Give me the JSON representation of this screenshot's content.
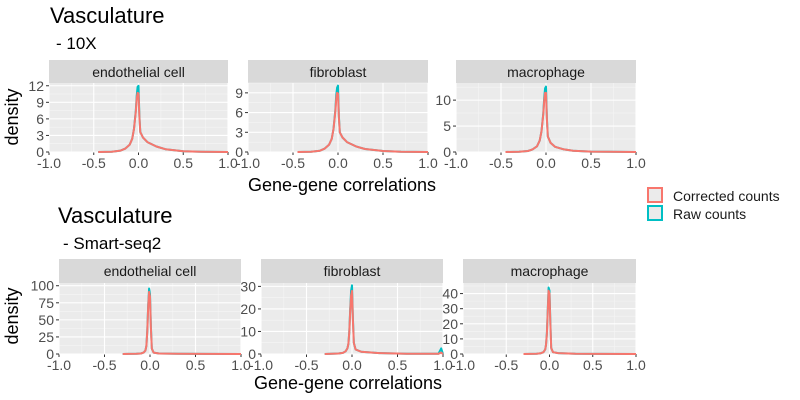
{
  "legend": {
    "items": [
      {
        "label": "Corrected counts",
        "color": "#F8766D"
      },
      {
        "label": "Raw counts",
        "color": "#00BFC4"
      }
    ],
    "placement": "right"
  },
  "chart_data": [
    {
      "type": "line",
      "title": "Vasculature",
      "subtitle": "- 10X",
      "xlabel": "Gene-gene correlations",
      "ylabel": "density",
      "xlim": [
        -1.0,
        1.0
      ],
      "xticks": [
        "-1.0",
        "-0.5",
        "0.0",
        "0.5",
        "1.0"
      ],
      "panels": [
        {
          "strip": "endothelial cell",
          "ylim": [
            0,
            12.5
          ],
          "yticks": [
            0,
            3,
            6,
            9,
            12
          ],
          "series": [
            {
              "name": "Raw counts",
              "x": [
                -0.45,
                -0.3,
                -0.2,
                -0.15,
                -0.1,
                -0.07,
                -0.05,
                -0.03,
                -0.02,
                -0.01,
                0.0,
                0.01,
                0.02,
                0.05,
                0.1,
                0.2,
                0.3,
                0.5,
                0.7,
                1.0
              ],
              "y": [
                0,
                0.05,
                0.25,
                0.6,
                1.3,
                2.4,
                4.2,
                7.5,
                10.2,
                11.8,
                12.0,
                6.5,
                3.6,
                2.6,
                1.8,
                1.0,
                0.5,
                0.15,
                0.05,
                0
              ]
            },
            {
              "name": "Corrected counts",
              "x": [
                -0.45,
                -0.3,
                -0.2,
                -0.15,
                -0.1,
                -0.07,
                -0.05,
                -0.03,
                -0.02,
                -0.01,
                0.0,
                0.01,
                0.02,
                0.05,
                0.1,
                0.2,
                0.3,
                0.5,
                0.7,
                1.0
              ],
              "y": [
                0,
                0.05,
                0.25,
                0.6,
                1.3,
                2.4,
                4.2,
                7.3,
                9.6,
                10.7,
                10.6,
                6.3,
                3.6,
                2.6,
                1.8,
                1.0,
                0.5,
                0.15,
                0.05,
                0
              ]
            }
          ]
        },
        {
          "strip": "fibroblast",
          "ylim": [
            0,
            10.5
          ],
          "yticks": [
            0,
            3,
            6,
            9
          ],
          "series": [
            {
              "name": "Raw counts",
              "x": [
                -0.45,
                -0.3,
                -0.2,
                -0.15,
                -0.1,
                -0.07,
                -0.05,
                -0.03,
                -0.02,
                -0.01,
                0.0,
                0.01,
                0.02,
                0.05,
                0.1,
                0.2,
                0.3,
                0.5,
                0.7,
                1.0
              ],
              "y": [
                0,
                0.05,
                0.2,
                0.5,
                1.1,
                2.0,
                3.5,
                6.3,
                8.6,
                9.8,
                10.1,
                5.4,
                3.0,
                2.2,
                1.5,
                0.85,
                0.45,
                0.15,
                0.05,
                0
              ]
            },
            {
              "name": "Corrected counts",
              "x": [
                -0.45,
                -0.3,
                -0.2,
                -0.15,
                -0.1,
                -0.07,
                -0.05,
                -0.03,
                -0.02,
                -0.01,
                0.0,
                0.01,
                0.02,
                0.05,
                0.1,
                0.2,
                0.3,
                0.5,
                0.7,
                1.0
              ],
              "y": [
                0,
                0.05,
                0.2,
                0.5,
                1.1,
                2.0,
                3.5,
                6.1,
                8.0,
                9.0,
                8.9,
                5.2,
                3.0,
                2.2,
                1.5,
                0.85,
                0.45,
                0.15,
                0.05,
                0
              ]
            }
          ]
        },
        {
          "strip": "macrophage",
          "ylim": [
            0,
            13.3
          ],
          "yticks": [
            0,
            5,
            10
          ],
          "series": [
            {
              "name": "Raw counts",
              "x": [
                -0.45,
                -0.3,
                -0.2,
                -0.15,
                -0.1,
                -0.07,
                -0.05,
                -0.03,
                -0.02,
                -0.01,
                0.0,
                0.01,
                0.02,
                0.05,
                0.1,
                0.2,
                0.3,
                0.5,
                0.7,
                1.0
              ],
              "y": [
                0,
                0.05,
                0.2,
                0.5,
                1.1,
                2.2,
                4.0,
                7.5,
                10.5,
                12.3,
                12.6,
                6.5,
                3.0,
                1.8,
                1.0,
                0.5,
                0.25,
                0.08,
                0.03,
                0
              ]
            },
            {
              "name": "Corrected counts",
              "x": [
                -0.45,
                -0.3,
                -0.2,
                -0.15,
                -0.1,
                -0.07,
                -0.05,
                -0.03,
                -0.02,
                -0.01,
                0.0,
                0.01,
                0.02,
                0.05,
                0.1,
                0.2,
                0.3,
                0.5,
                0.7,
                1.0
              ],
              "y": [
                0,
                0.05,
                0.2,
                0.5,
                1.1,
                2.2,
                4.0,
                7.3,
                9.9,
                11.4,
                11.4,
                6.3,
                3.0,
                1.8,
                1.0,
                0.5,
                0.25,
                0.08,
                0.03,
                0
              ]
            }
          ]
        }
      ]
    },
    {
      "type": "line",
      "title": "Vasculature",
      "subtitle": "- Smart-seq2",
      "xlabel": "Gene-gene correlations",
      "ylabel": "density",
      "xlim": [
        -1.0,
        1.0
      ],
      "xticks": [
        "-1.0",
        "-0.5",
        "0.0",
        "0.5",
        "1.0"
      ],
      "panels": [
        {
          "strip": "endothelial cell",
          "ylim": [
            0,
            104
          ],
          "yticks": [
            0,
            25,
            50,
            75,
            100
          ],
          "series": [
            {
              "name": "Raw counts",
              "x": [
                -0.3,
                -0.15,
                -0.1,
                -0.07,
                -0.05,
                -0.04,
                -0.03,
                -0.02,
                -0.01,
                0.0,
                0.01,
                0.02,
                0.04,
                0.1,
                0.3,
                0.6,
                1.0
              ],
              "y": [
                0,
                0.3,
                0.8,
                2.0,
                5.0,
                12.0,
                35.0,
                72.0,
                96.0,
                88.0,
                40.0,
                8.0,
                2.0,
                0.8,
                0.3,
                0.1,
                0
              ]
            },
            {
              "name": "Corrected counts",
              "x": [
                -0.3,
                -0.15,
                -0.1,
                -0.07,
                -0.05,
                -0.04,
                -0.03,
                -0.02,
                -0.01,
                0.0,
                0.01,
                0.02,
                0.04,
                0.1,
                0.3,
                0.6,
                1.0
              ],
              "y": [
                0,
                0.3,
                0.8,
                2.0,
                5.0,
                12.0,
                34.0,
                70.0,
                91.0,
                84.0,
                38.0,
                8.0,
                2.0,
                0.8,
                0.3,
                0.1,
                0
              ]
            }
          ]
        },
        {
          "strip": "fibroblast",
          "ylim": [
            0,
            31.5
          ],
          "yticks": [
            0,
            10,
            20,
            30
          ],
          "series": [
            {
              "name": "Raw counts",
              "x": [
                -0.3,
                -0.15,
                -0.1,
                -0.07,
                -0.05,
                -0.04,
                -0.03,
                -0.02,
                -0.01,
                0.0,
                0.01,
                0.02,
                0.04,
                0.1,
                0.3,
                0.6,
                0.95,
                0.98,
                1.0
              ],
              "y": [
                0,
                0.2,
                0.5,
                1.2,
                2.5,
                4.5,
                10.0,
                20.0,
                28.0,
                30.5,
                16.0,
                5.0,
                2.0,
                1.0,
                0.4,
                0.1,
                0.1,
                2.5,
                0
              ]
            },
            {
              "name": "Corrected counts",
              "x": [
                -0.3,
                -0.15,
                -0.1,
                -0.07,
                -0.05,
                -0.04,
                -0.03,
                -0.02,
                -0.01,
                0.0,
                0.01,
                0.02,
                0.04,
                0.1,
                0.3,
                0.6,
                0.95,
                0.98,
                1.0
              ],
              "y": [
                0,
                0.2,
                0.5,
                1.2,
                2.5,
                4.5,
                9.8,
                19.0,
                26.0,
                28.0,
                15.0,
                5.0,
                2.0,
                1.0,
                0.4,
                0.1,
                0.1,
                0.6,
                0
              ]
            }
          ]
        },
        {
          "strip": "macrophage",
          "ylim": [
            0,
            47
          ],
          "yticks": [
            0,
            10,
            20,
            30,
            40
          ],
          "series": [
            {
              "name": "Raw counts",
              "x": [
                -0.3,
                -0.15,
                -0.1,
                -0.07,
                -0.05,
                -0.04,
                -0.03,
                -0.02,
                -0.01,
                0.0,
                0.01,
                0.02,
                0.04,
                0.1,
                0.3,
                0.6,
                1.0
              ],
              "y": [
                0,
                0.2,
                0.5,
                1.2,
                3.0,
                6.0,
                14.0,
                30.0,
                44.0,
                42.0,
                20.0,
                4.0,
                1.2,
                0.6,
                0.2,
                0.05,
                0
              ]
            },
            {
              "name": "Corrected counts",
              "x": [
                -0.3,
                -0.15,
                -0.1,
                -0.07,
                -0.05,
                -0.04,
                -0.03,
                -0.02,
                -0.01,
                0.0,
                0.01,
                0.02,
                0.04,
                0.1,
                0.3,
                0.6,
                1.0
              ],
              "y": [
                0,
                0.2,
                0.5,
                1.2,
                3.0,
                6.0,
                13.5,
                29.0,
                42.0,
                40.0,
                19.0,
                4.0,
                1.2,
                0.6,
                0.2,
                0.05,
                0
              ]
            }
          ]
        }
      ]
    }
  ]
}
